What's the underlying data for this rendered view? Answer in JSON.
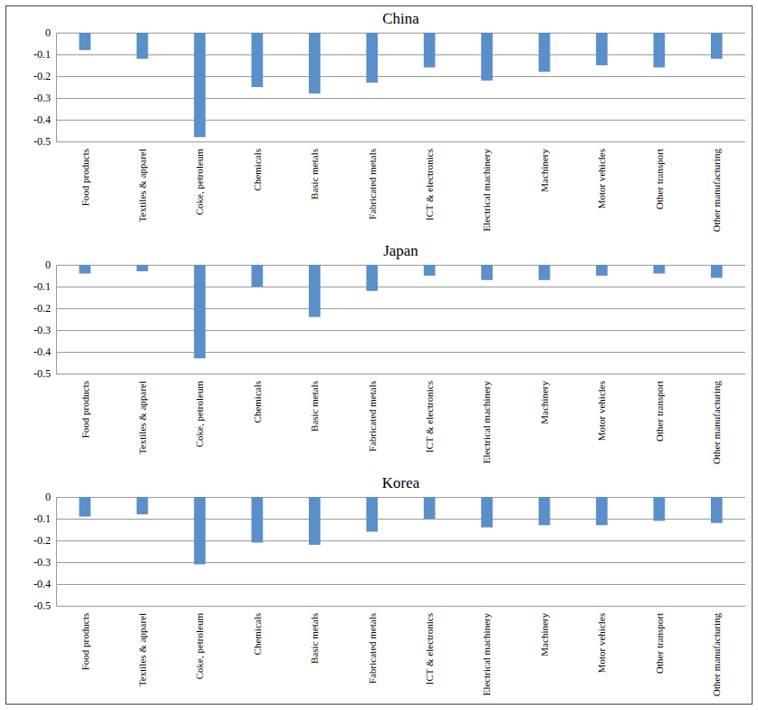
{
  "chart_data": [
    {
      "type": "bar",
      "title": "China",
      "categories": [
        "Food products",
        "Textiles & apparel",
        "Coke, petroleum",
        "Chemicals",
        "Basic metals",
        "Fabricated metals",
        "ICT & electronics",
        "Electrical machinery",
        "Machinery",
        "Motor vehicles",
        "Other transport",
        "Other manufacturing"
      ],
      "values": [
        -0.08,
        -0.12,
        -0.48,
        -0.25,
        -0.28,
        -0.23,
        -0.16,
        -0.22,
        -0.18,
        -0.15,
        -0.16,
        -0.12
      ],
      "color": "#5b8fc9",
      "ylim": [
        -0.5,
        0
      ],
      "yticks": [
        -0.5,
        -0.4,
        -0.3,
        -0.2,
        -0.1,
        0
      ],
      "grid": true
    },
    {
      "type": "bar",
      "title": "Japan",
      "categories": [
        "Food products",
        "Textiles & apparel",
        "Coke, petroleum",
        "Chemicals",
        "Basic metals",
        "Fabricated metals",
        "ICT & electronics",
        "Electrical machinery",
        "Machinery",
        "Motor vehicles",
        "Other transport",
        "Other manufacturing"
      ],
      "values": [
        -0.04,
        -0.03,
        -0.43,
        -0.1,
        -0.24,
        -0.12,
        -0.05,
        -0.07,
        -0.07,
        -0.05,
        -0.04,
        -0.06
      ],
      "color": "#5b8fc9",
      "ylim": [
        -0.5,
        0
      ],
      "yticks": [
        -0.5,
        -0.4,
        -0.3,
        -0.2,
        -0.1,
        0
      ],
      "grid": true
    },
    {
      "type": "bar",
      "title": "Korea",
      "categories": [
        "Food products",
        "Textiles & apparel",
        "Coke, petroleum",
        "Chemicals",
        "Basic metals",
        "Fabricated metals",
        "ICT & electronics",
        "Electrical machinery",
        "Machinery",
        "Motor vehicles",
        "Other transport",
        "Other manufacturing"
      ],
      "values": [
        -0.09,
        -0.08,
        -0.31,
        -0.21,
        -0.22,
        -0.16,
        -0.1,
        -0.14,
        -0.13,
        -0.13,
        -0.11,
        -0.12
      ],
      "color": "#5b8fc9",
      "ylim": [
        -0.5,
        0
      ],
      "yticks": [
        -0.5,
        -0.4,
        -0.3,
        -0.2,
        -0.1,
        0
      ],
      "grid": true
    }
  ]
}
